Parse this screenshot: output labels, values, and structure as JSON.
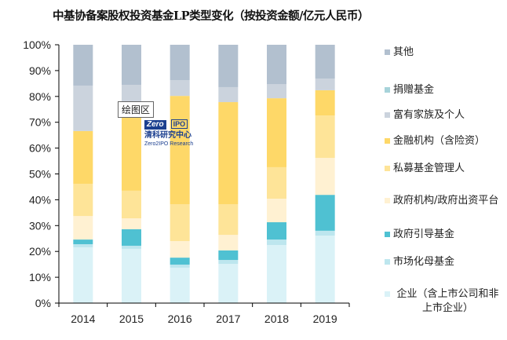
{
  "chart_data": {
    "type": "bar",
    "stacked": true,
    "normalized": true,
    "title": "中基协备案股权投资基金LP类型变化（按投资金额/亿元人民币）",
    "xlabel": "",
    "ylabel": "",
    "ylim": [
      0,
      100
    ],
    "y_ticks": [
      "0%",
      "10%",
      "20%",
      "30%",
      "40%",
      "50%",
      "60%",
      "70%",
      "80%",
      "90%",
      "100%"
    ],
    "categories": [
      "2014",
      "2015",
      "2016",
      "2017",
      "2018",
      "2019"
    ],
    "legend_position": "right",
    "grid": false,
    "series": [
      {
        "name": "企业（含上市公司和非上市企业）",
        "color": "#daf2f7",
        "values": [
          21.6,
          21.0,
          13.7,
          15.2,
          22.5,
          26.1
        ]
      },
      {
        "name": "市场化母基金",
        "color": "#bde6ee",
        "values": [
          1.2,
          1.2,
          1.2,
          1.5,
          2.1,
          1.9
        ]
      },
      {
        "name": "政府引导基金",
        "color": "#4fc1d2",
        "values": [
          1.8,
          6.4,
          2.7,
          3.7,
          6.7,
          13.9
        ]
      },
      {
        "name": "政府机构/政府出资平台",
        "color": "#fff1d2",
        "values": [
          9.1,
          4.2,
          6.4,
          6.0,
          9.1,
          14.3
        ]
      },
      {
        "name": "私募基金管理人",
        "color": "#fee498",
        "values": [
          12.5,
          10.7,
          14.3,
          11.9,
          12.2,
          16.4
        ]
      },
      {
        "name": "金融机构（含险资）",
        "color": "#fed868",
        "values": [
          20.4,
          34.3,
          41.9,
          39.5,
          26.7,
          9.8
        ]
      },
      {
        "name": "富有家族及个人",
        "color": "#cbd3dd",
        "values": [
          17.6,
          6.7,
          6.1,
          5.8,
          5.5,
          4.5
        ]
      },
      {
        "name": "捐赠基金",
        "color": "#a7d3da",
        "values": [
          0,
          0,
          0,
          0,
          0,
          0
        ]
      },
      {
        "name": "其他",
        "color": "#b2c0cf",
        "values": [
          15.8,
          15.5,
          13.7,
          16.4,
          15.2,
          13.1
        ]
      }
    ]
  },
  "legend": [
    {
      "label": "其他",
      "color": "#b2c0cf"
    },
    {
      "label": "捐赠基金",
      "color": "#a7d3da"
    },
    {
      "label": "富有家族及个人",
      "color": "#cbd3dd"
    },
    {
      "label": "金融机构（含险资）",
      "color": "#fed868"
    },
    {
      "label": "私募基金管理人",
      "color": "#fee498"
    },
    {
      "label": "政府机构/政府出资平台",
      "color": "#fff1d2"
    },
    {
      "label": "政府引导基金",
      "color": "#4fc1d2"
    },
    {
      "label": "市场化母基金",
      "color": "#bde6ee"
    },
    {
      "label": "企业（含上市公司和非上市企业）",
      "color": "#daf2f7"
    }
  ],
  "tooltip": "绘图区",
  "watermark": {
    "logo_left": "Zero",
    "logo_right": "IPO",
    "name_cn": "清科研究中心",
    "name_en": "Zero2IPO Research"
  }
}
